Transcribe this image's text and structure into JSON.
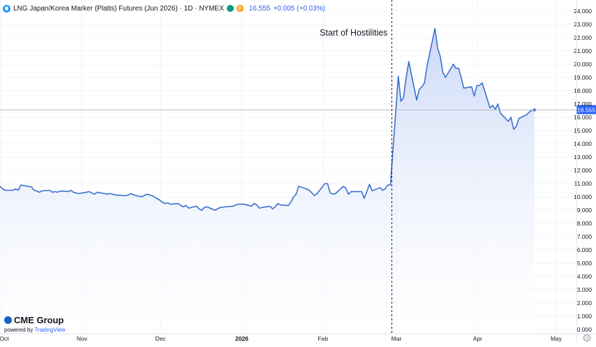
{
  "header": {
    "symbol_title": "LNG Japan/Korea Marker (Platts) Futures (Jun 2026) · 1D · NYMEX",
    "badge_1": "",
    "badge_2": "D",
    "price": "16.555",
    "change": "+0.005 (+0.03%)"
  },
  "watermark": {
    "brand": "CME Group",
    "powered_prefix": "powered by",
    "powered_brand": "TradingView"
  },
  "colors": {
    "line": "#3a6fd0",
    "area_top": "#c7d6f6",
    "area_bottom": "#ffffff",
    "price_label_bg": "#2962ff",
    "grid": "#f0f3fa",
    "axis_text": "#131722"
  },
  "chart_data": {
    "type": "area",
    "title": "LNG Japan/Korea Marker (Platts) Futures (Jun 2026)",
    "xlabel": "",
    "ylabel": "",
    "x_tick_labels": [
      "Oct",
      "Nov",
      "Dec",
      "2026",
      "Feb",
      "Mar",
      "Apr",
      "May"
    ],
    "y_tick_labels": [
      "0.000",
      "1.000",
      "2.000",
      "3.000",
      "4.000",
      "5.000",
      "6.000",
      "7.000",
      "8.000",
      "9.000",
      "10.000",
      "11.000",
      "12.000",
      "13.000",
      "14.000",
      "15.000",
      "16.000",
      "17.000",
      "18.000",
      "19.000",
      "20.000",
      "21.000",
      "22.000",
      "23.000",
      "24.000"
    ],
    "ylim": [
      0,
      24
    ],
    "y_axis_position": "right",
    "grid": true,
    "annotation": "Start of Hostilities",
    "annotation_date": "2026-02-27",
    "last_value_label": "16.555",
    "series": [
      {
        "points": [
          [
            "2025-10-01",
            10.8
          ],
          [
            "2025-10-02",
            10.6
          ],
          [
            "2025-10-03",
            10.5
          ],
          [
            "2025-10-06",
            10.5
          ],
          [
            "2025-10-07",
            10.6
          ],
          [
            "2025-10-08",
            10.5
          ],
          [
            "2025-10-09",
            10.9
          ],
          [
            "2025-10-10",
            10.85
          ],
          [
            "2025-10-13",
            10.75
          ],
          [
            "2025-10-14",
            10.5
          ],
          [
            "2025-10-15",
            10.45
          ],
          [
            "2025-10-16",
            10.35
          ],
          [
            "2025-10-17",
            10.45
          ],
          [
            "2025-10-20",
            10.5
          ],
          [
            "2025-10-21",
            10.35
          ],
          [
            "2025-10-22",
            10.4
          ],
          [
            "2025-10-23",
            10.35
          ],
          [
            "2025-10-24",
            10.45
          ],
          [
            "2025-10-27",
            10.4
          ],
          [
            "2025-10-28",
            10.5
          ],
          [
            "2025-10-29",
            10.35
          ],
          [
            "2025-10-30",
            10.3
          ],
          [
            "2025-10-31",
            10.25
          ],
          [
            "2025-11-03",
            10.35
          ],
          [
            "2025-11-04",
            10.4
          ],
          [
            "2025-11-05",
            10.3
          ],
          [
            "2025-11-06",
            10.2
          ],
          [
            "2025-11-07",
            10.35
          ],
          [
            "2025-11-10",
            10.25
          ],
          [
            "2025-11-11",
            10.2
          ],
          [
            "2025-11-12",
            10.25
          ],
          [
            "2025-11-13",
            10.2
          ],
          [
            "2025-11-14",
            10.15
          ],
          [
            "2025-11-17",
            10.1
          ],
          [
            "2025-11-18",
            10.1
          ],
          [
            "2025-11-19",
            10.15
          ],
          [
            "2025-11-20",
            10.25
          ],
          [
            "2025-11-21",
            10.15
          ],
          [
            "2025-11-24",
            10.0
          ],
          [
            "2025-11-25",
            10.1
          ],
          [
            "2025-11-26",
            10.2
          ],
          [
            "2025-11-28",
            10.1
          ],
          [
            "2025-12-01",
            9.75
          ],
          [
            "2025-12-02",
            9.6
          ],
          [
            "2025-12-03",
            9.5
          ],
          [
            "2025-12-04",
            9.55
          ],
          [
            "2025-12-05",
            9.45
          ],
          [
            "2025-12-08",
            9.5
          ],
          [
            "2025-12-09",
            9.35
          ],
          [
            "2025-12-10",
            9.25
          ],
          [
            "2025-12-11",
            9.35
          ],
          [
            "2025-12-12",
            9.15
          ],
          [
            "2025-12-15",
            9.3
          ],
          [
            "2025-12-16",
            9.1
          ],
          [
            "2025-12-17",
            9.0
          ],
          [
            "2025-12-18",
            9.2
          ],
          [
            "2025-12-19",
            9.25
          ],
          [
            "2025-12-22",
            9.0
          ],
          [
            "2025-12-23",
            9.1
          ],
          [
            "2025-12-24",
            9.2
          ],
          [
            "2025-12-26",
            9.25
          ],
          [
            "2025-12-29",
            9.3
          ],
          [
            "2025-12-30",
            9.4
          ],
          [
            "2025-12-31",
            9.45
          ],
          [
            "2026-01-02",
            9.45
          ],
          [
            "2026-01-05",
            9.3
          ],
          [
            "2026-01-06",
            9.5
          ],
          [
            "2026-01-07",
            9.4
          ],
          [
            "2026-01-08",
            9.15
          ],
          [
            "2026-01-09",
            9.2
          ],
          [
            "2026-01-12",
            9.3
          ],
          [
            "2026-01-13",
            9.1
          ],
          [
            "2026-01-14",
            9.25
          ],
          [
            "2026-01-15",
            9.5
          ],
          [
            "2026-01-16",
            9.4
          ],
          [
            "2026-01-19",
            9.35
          ],
          [
            "2026-01-20",
            9.6
          ],
          [
            "2026-01-21",
            10.0
          ],
          [
            "2026-01-22",
            10.2
          ],
          [
            "2026-01-23",
            10.8
          ],
          [
            "2026-01-26",
            10.6
          ],
          [
            "2026-01-27",
            10.5
          ],
          [
            "2026-01-28",
            10.3
          ],
          [
            "2026-01-29",
            10.1
          ],
          [
            "2026-01-30",
            10.25
          ],
          [
            "2026-02-02",
            11.0
          ],
          [
            "2026-02-03",
            11.0
          ],
          [
            "2026-02-04",
            10.3
          ],
          [
            "2026-02-05",
            10.2
          ],
          [
            "2026-02-06",
            10.25
          ],
          [
            "2026-02-09",
            10.8
          ],
          [
            "2026-02-10",
            10.65
          ],
          [
            "2026-02-11",
            10.2
          ],
          [
            "2026-02-12",
            10.4
          ],
          [
            "2026-02-13",
            10.4
          ],
          [
            "2026-02-16",
            10.4
          ],
          [
            "2026-02-17",
            9.9
          ],
          [
            "2026-02-18",
            10.4
          ],
          [
            "2026-02-19",
            10.95
          ],
          [
            "2026-02-20",
            10.45
          ],
          [
            "2026-02-23",
            10.7
          ],
          [
            "2026-02-24",
            10.5
          ],
          [
            "2026-02-25",
            10.6
          ],
          [
            "2026-02-26",
            10.9
          ],
          [
            "2026-02-27",
            10.9
          ],
          [
            "2026-03-02",
            19.1
          ],
          [
            "2026-03-03",
            17.2
          ],
          [
            "2026-03-04",
            17.5
          ],
          [
            "2026-03-05",
            19.0
          ],
          [
            "2026-03-06",
            20.2
          ],
          [
            "2026-03-09",
            17.3
          ],
          [
            "2026-03-10",
            18.1
          ],
          [
            "2026-03-11",
            18.3
          ],
          [
            "2026-03-12",
            18.6
          ],
          [
            "2026-03-13",
            19.9
          ],
          [
            "2026-03-16",
            22.7
          ],
          [
            "2026-03-17",
            21.2
          ],
          [
            "2026-03-18",
            20.6
          ],
          [
            "2026-03-19",
            19.4
          ],
          [
            "2026-03-20",
            19.0
          ],
          [
            "2026-03-23",
            20.0
          ],
          [
            "2026-03-24",
            19.7
          ],
          [
            "2026-03-25",
            19.7
          ],
          [
            "2026-03-26",
            19.0
          ],
          [
            "2026-03-27",
            18.2
          ],
          [
            "2026-03-30",
            18.3
          ],
          [
            "2026-03-31",
            17.6
          ],
          [
            "2026-04-01",
            18.4
          ],
          [
            "2026-04-02",
            18.4
          ],
          [
            "2026-04-03",
            18.6
          ],
          [
            "2026-04-06",
            16.7
          ],
          [
            "2026-04-07",
            16.9
          ],
          [
            "2026-04-08",
            16.6
          ],
          [
            "2026-04-09",
            17.0
          ],
          [
            "2026-04-10",
            16.3
          ],
          [
            "2026-04-13",
            15.7
          ],
          [
            "2026-04-14",
            16.0
          ],
          [
            "2026-04-15",
            15.1
          ],
          [
            "2026-04-16",
            15.3
          ],
          [
            "2026-04-17",
            15.9
          ],
          [
            "2026-04-20",
            16.2
          ],
          [
            "2026-04-21",
            16.4
          ],
          [
            "2026-04-22",
            16.55
          ],
          [
            "2026-04-23",
            16.555
          ]
        ]
      }
    ]
  }
}
